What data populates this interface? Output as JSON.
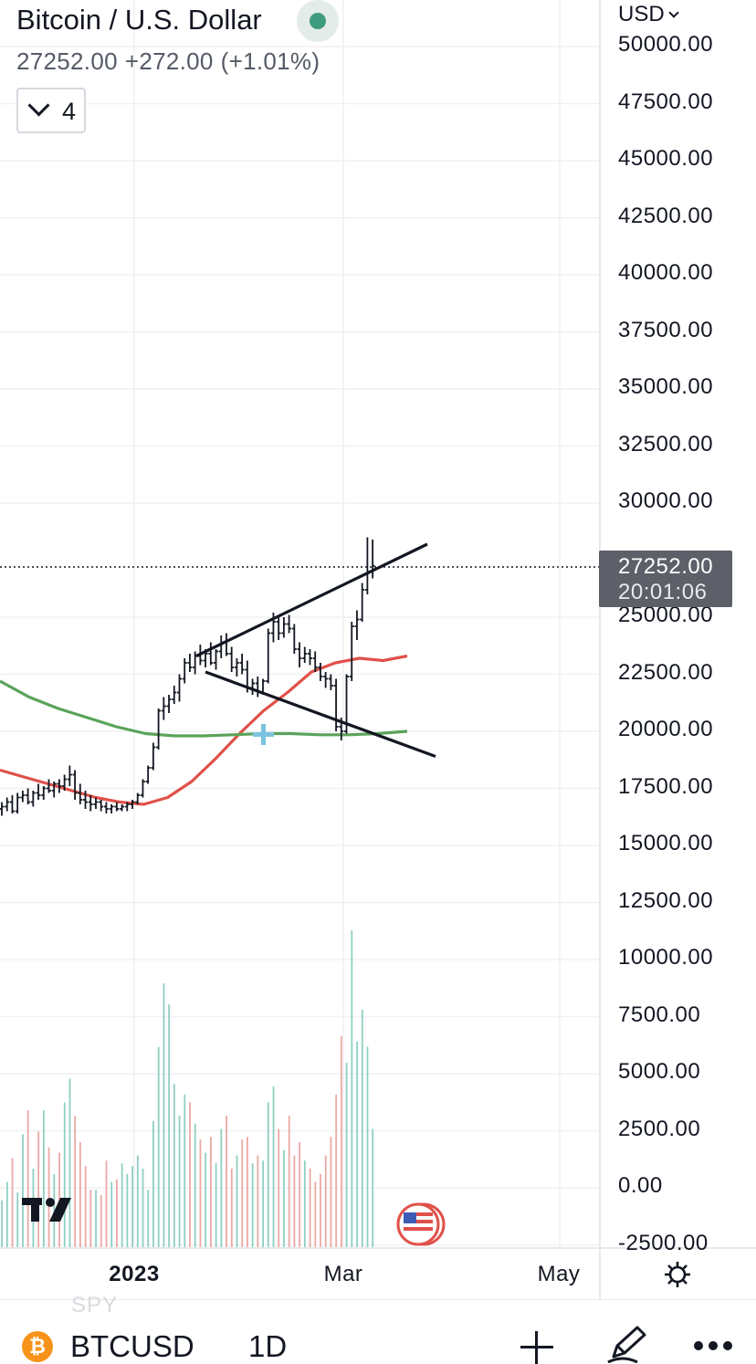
{
  "header": {
    "title": "Bitcoin / U.S. Dollar",
    "price": "27252.00",
    "change": "+272.00",
    "change_pct": "(+1.01%)",
    "indicator_count": "4",
    "currency": "USD"
  },
  "price_axis": {
    "labels": [
      "50000.00",
      "47500.00",
      "45000.00",
      "42500.00",
      "40000.00",
      "37500.00",
      "35000.00",
      "32500.00",
      "30000.00",
      "25000.00",
      "22500.00",
      "20000.00",
      "17500.00",
      "15000.00",
      "12500.00",
      "10000.00",
      "7500.00",
      "5000.00",
      "2500.00",
      "0.00",
      "-2500.00"
    ],
    "current_price": "27252.00",
    "countdown": "20:01:06"
  },
  "time_axis": {
    "labels": [
      "2023",
      "Mar",
      "May"
    ]
  },
  "bottom_bar": {
    "symbol": "BTCUSD",
    "interval": "1D",
    "ghost_text": "SPY"
  },
  "icons": {
    "tradingview_logo": "tradingview-logo",
    "settings": "gear-icon",
    "add": "plus-icon",
    "draw": "pencil-icon",
    "more": "more-icon",
    "flag": "us-flag-icon",
    "coin": "bitcoin-icon"
  },
  "colors": {
    "red_ma": "#e0514a",
    "green_ma": "#5aa35a",
    "live_dot": "#3f9b7e",
    "volume_up": "#8fcfc2",
    "volume_down": "#eba9a5",
    "candles": "#131722",
    "price_tag_bg": "#5d6068",
    "bitcoin_orange": "#f7931a"
  },
  "chart_data": {
    "type": "bar",
    "title": "Bitcoin / U.S. Dollar",
    "interval": "1D",
    "ylim": [
      -2500,
      50000
    ],
    "last_price": 27252.0,
    "ohlc_approx": [
      [
        16600,
        16900,
        16300,
        16700
      ],
      [
        16700,
        17100,
        16500,
        16900
      ],
      [
        16900,
        17200,
        16400,
        16500
      ],
      [
        16500,
        17300,
        16400,
        17100
      ],
      [
        17100,
        17400,
        16900,
        17200
      ],
      [
        17200,
        17500,
        16800,
        16900
      ],
      [
        16900,
        17400,
        16700,
        17300
      ],
      [
        17300,
        17700,
        17000,
        17200
      ],
      [
        17200,
        17600,
        17000,
        17500
      ],
      [
        17500,
        17900,
        17300,
        17400
      ],
      [
        17400,
        17800,
        17100,
        17700
      ],
      [
        17700,
        17900,
        17300,
        17600
      ],
      [
        17600,
        18100,
        17400,
        17900
      ],
      [
        17900,
        18500,
        17600,
        18100
      ],
      [
        18100,
        18300,
        17000,
        17300
      ],
      [
        17300,
        17700,
        16800,
        17000
      ],
      [
        17000,
        17400,
        16600,
        16900
      ],
      [
        16900,
        17200,
        16500,
        16800
      ],
      [
        16800,
        17100,
        16600,
        16900
      ],
      [
        16900,
        17000,
        16500,
        16700
      ],
      [
        16700,
        16900,
        16400,
        16600
      ],
      [
        16600,
        16800,
        16400,
        16700
      ],
      [
        16700,
        16900,
        16500,
        16600
      ],
      [
        16600,
        16800,
        16500,
        16700
      ],
      [
        16700,
        16900,
        16500,
        16800
      ],
      [
        16800,
        17000,
        16600,
        16900
      ],
      [
        16900,
        17300,
        16800,
        17200
      ],
      [
        17200,
        17900,
        17100,
        17800
      ],
      [
        17800,
        18500,
        17700,
        18400
      ],
      [
        18400,
        19500,
        18300,
        19300
      ],
      [
        19300,
        21000,
        19200,
        20900
      ],
      [
        20900,
        21500,
        20500,
        21100
      ],
      [
        21100,
        21600,
        20800,
        21400
      ],
      [
        21400,
        22000,
        21200,
        21700
      ],
      [
        21700,
        22500,
        21300,
        22300
      ],
      [
        22300,
        23200,
        22100,
        23000
      ],
      [
        23000,
        23400,
        22600,
        22800
      ],
      [
        22800,
        23500,
        22500,
        23300
      ],
      [
        23300,
        23800,
        22900,
        23100
      ],
      [
        23100,
        23600,
        22800,
        23400
      ],
      [
        23400,
        23900,
        22900,
        23000
      ],
      [
        23000,
        23600,
        22700,
        23500
      ],
      [
        23500,
        24200,
        23200,
        23900
      ],
      [
        23900,
        24300,
        23300,
        23400
      ],
      [
        23400,
        23700,
        22600,
        22800
      ],
      [
        22800,
        23200,
        22400,
        23000
      ],
      [
        23000,
        23400,
        22500,
        22700
      ],
      [
        22700,
        23100,
        21700,
        21900
      ],
      [
        21900,
        22300,
        21600,
        22100
      ],
      [
        22100,
        22400,
        21500,
        21700
      ],
      [
        21700,
        22300,
        21600,
        22200
      ],
      [
        22200,
        24500,
        22100,
        24300
      ],
      [
        24300,
        25200,
        23900,
        24800
      ],
      [
        24800,
        25100,
        24000,
        24300
      ],
      [
        24300,
        25000,
        24100,
        24700
      ],
      [
        24700,
        25100,
        24300,
        24500
      ],
      [
        24500,
        24700,
        23400,
        23600
      ],
      [
        23600,
        23900,
        22800,
        23200
      ],
      [
        23200,
        23700,
        23000,
        23400
      ],
      [
        23400,
        23600,
        22900,
        23200
      ],
      [
        23200,
        23500,
        22600,
        22800
      ],
      [
        22800,
        23000,
        22200,
        22400
      ],
      [
        22400,
        22600,
        21900,
        22300
      ],
      [
        22300,
        22500,
        21800,
        22000
      ],
      [
        22000,
        22300,
        20000,
        20200
      ],
      [
        20200,
        20600,
        19600,
        20000
      ],
      [
        20000,
        22500,
        19900,
        22400
      ],
      [
        22400,
        24800,
        22200,
        24600
      ],
      [
        24600,
        25300,
        24000,
        24900
      ],
      [
        24900,
        26500,
        24800,
        26200
      ],
      [
        26200,
        28500,
        26000,
        27000
      ],
      [
        27000,
        28400,
        26700,
        27252
      ]
    ],
    "series": [
      {
        "name": "",
        "color": "#e0514a",
        "values": [
          18300,
          18000,
          17700,
          17400,
          17100,
          16900,
          16800,
          17100,
          17800,
          18800,
          19900,
          20900,
          21700,
          22600,
          23000,
          23200,
          23100,
          23300
        ]
      },
      {
        "name": "",
        "color": "#5aa35a",
        "values": [
          22200,
          21500,
          21000,
          20600,
          20200,
          19900,
          19800,
          19800,
          19850,
          19900,
          19900,
          19850,
          19850,
          19900,
          20000
        ]
      }
    ],
    "trendlines": [
      {
        "from": [
          "2023-01-21",
          23300
        ],
        "to": [
          "2023-03-25",
          28200
        ]
      },
      {
        "from": [
          "2023-01-21",
          22600
        ],
        "to": [
          "2023-03-25",
          18900
        ]
      }
    ],
    "volume_relative": [
      0.18,
      0.25,
      0.34,
      0.21,
      0.43,
      0.52,
      0.3,
      0.44,
      0.52,
      0.38,
      0.28,
      0.36,
      0.55,
      0.64,
      0.5,
      0.4,
      0.31,
      0.22,
      0.22,
      0.2,
      0.33,
      0.25,
      0.26,
      0.32,
      0.28,
      0.31,
      0.35,
      0.3,
      0.22,
      0.48,
      0.76,
      1.0,
      0.92,
      0.62,
      0.5,
      0.58,
      0.55,
      0.47,
      0.41,
      0.36,
      0.42,
      0.32,
      0.45,
      0.5,
      0.3,
      0.35,
      0.41,
      0.42,
      0.32,
      0.35,
      0.33,
      0.55,
      0.61,
      0.45,
      0.37,
      0.5,
      0.35,
      0.4,
      0.33,
      0.3,
      0.25,
      0.28,
      0.35,
      0.42,
      0.58,
      0.8,
      0.7,
      1.2,
      0.78,
      0.9,
      0.76,
      0.45
    ],
    "volume_directions": "mixed"
  }
}
